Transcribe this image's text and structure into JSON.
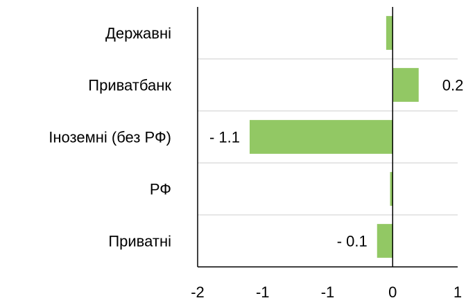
{
  "chart_data": {
    "type": "bar",
    "orientation": "horizontal",
    "categories": [
      "Державні",
      "Приватбанк",
      "Іноземні (без РФ)",
      "РФ",
      "Приватні"
    ],
    "values": [
      -0.05,
      0.2,
      -1.1,
      -0.02,
      -0.12
    ],
    "data_labels": [
      "",
      "0.2",
      "- 1.1",
      "",
      "- 0.1"
    ],
    "x_ticks": [
      -1.5,
      -1.0,
      -0.5,
      0.0,
      0.5
    ],
    "x_tick_labels": [
      "-2",
      "-1",
      "-1",
      "0",
      "1"
    ],
    "xlim": [
      -1.5,
      0.5
    ],
    "title": "",
    "xlabel": "",
    "ylabel": "",
    "grid": "horizontal",
    "legend": "none",
    "bar_color": "#92c864",
    "grid_color": "#cccccc",
    "axis_color": "#000000"
  }
}
